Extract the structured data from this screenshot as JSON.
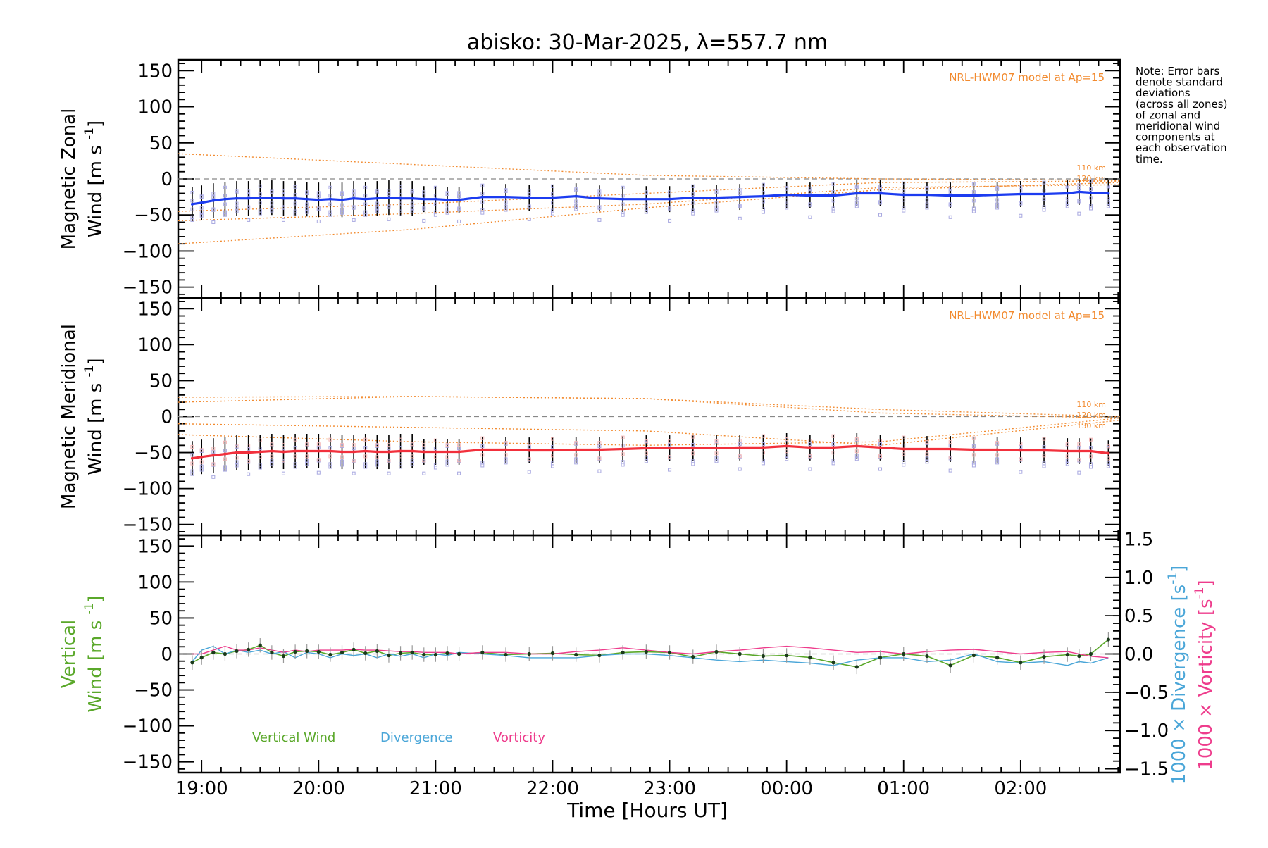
{
  "title": "abisko: 30-Mar-2025, λ=557.7 nm",
  "note_lines": [
    "Note: Error bars",
    "denote standard",
    "deviations",
    "(across all zones)",
    "of zonal and",
    "meridional wind",
    "components at",
    "each observation",
    "time."
  ],
  "colors": {
    "zonal": "#1c3cf0",
    "meridional": "#f2303c",
    "vertical": "#5aa82a",
    "divergence": "#4aa6d8",
    "vorticity": "#ee3c8c",
    "model": "#f28a2e",
    "zone_zonal": "#b4b4ec",
    "zone_merid": "#f4b8b8"
  },
  "chart_data": [
    {
      "type": "line",
      "panel": "zonal",
      "ylabel_line1": "Magnetic Zonal",
      "ylabel_line2": "Wind",
      "ylabel_units": "[m s",
      "ylabel_sup": "-1",
      "ylabel_close": "]",
      "ylim": [
        -165,
        165
      ],
      "yticks": [
        150,
        100,
        50,
        0,
        -50,
        -100,
        -150
      ],
      "model_note": "NRL-HWM07 model at Ap=15",
      "model_labels": [
        "110 km",
        "120 km"
      ],
      "x": [
        18.92,
        19.0,
        19.1,
        19.2,
        19.3,
        19.4,
        19.5,
        19.6,
        19.7,
        19.8,
        19.9,
        20.0,
        20.1,
        20.2,
        20.3,
        20.4,
        20.5,
        20.6,
        20.7,
        20.8,
        20.9,
        21.0,
        21.1,
        21.2,
        21.4,
        21.6,
        21.8,
        22.0,
        22.2,
        22.4,
        22.6,
        22.8,
        23.0,
        23.2,
        23.4,
        23.6,
        23.8,
        24.0,
        24.2,
        24.4,
        24.6,
        24.8,
        25.0,
        25.2,
        25.4,
        25.6,
        25.8,
        26.0,
        26.2,
        26.4,
        26.5,
        26.6,
        26.75
      ],
      "values": [
        -35,
        -33,
        -30,
        -28,
        -27,
        -27,
        -26,
        -26,
        -27,
        -27,
        -28,
        -29,
        -28,
        -29,
        -27,
        -28,
        -27,
        -26,
        -27,
        -27,
        -28,
        -28,
        -29,
        -29,
        -25,
        -25,
        -26,
        -26,
        -24,
        -27,
        -28,
        -28,
        -28,
        -26,
        -26,
        -25,
        -24,
        -22,
        -23,
        -23,
        -20,
        -20,
        -22,
        -22,
        -23,
        -23,
        -22,
        -21,
        -21,
        -20,
        -18,
        -19,
        -20
      ]
    },
    {
      "type": "line",
      "panel": "meridional",
      "ylabel_line1": "Magnetic Meridional",
      "ylabel_line2": "Wind",
      "ylabel_units": "[m s",
      "ylabel_sup": "-1",
      "ylabel_close": "]",
      "ylim": [
        -165,
        165
      ],
      "yticks": [
        150,
        100,
        50,
        0,
        -50,
        -100,
        -150
      ],
      "model_note": "NRL-HWM07 model at Ap=15",
      "model_labels": [
        "110 km",
        "120 km",
        "130 km"
      ],
      "x": [
        18.92,
        19.0,
        19.1,
        19.2,
        19.3,
        19.4,
        19.5,
        19.6,
        19.7,
        19.8,
        19.9,
        20.0,
        20.1,
        20.2,
        20.3,
        20.4,
        20.5,
        20.6,
        20.7,
        20.8,
        20.9,
        21.0,
        21.1,
        21.2,
        21.4,
        21.6,
        21.8,
        22.0,
        22.2,
        22.4,
        22.6,
        22.8,
        23.0,
        23.2,
        23.4,
        23.6,
        23.8,
        24.0,
        24.2,
        24.4,
        24.6,
        24.8,
        25.0,
        25.2,
        25.4,
        25.6,
        25.8,
        26.0,
        26.2,
        26.4,
        26.5,
        26.6,
        26.75
      ],
      "values": [
        -58,
        -56,
        -54,
        -52,
        -50,
        -50,
        -49,
        -48,
        -49,
        -48,
        -48,
        -48,
        -48,
        -49,
        -49,
        -48,
        -49,
        -49,
        -48,
        -48,
        -49,
        -49,
        -49,
        -49,
        -46,
        -46,
        -47,
        -47,
        -46,
        -46,
        -45,
        -44,
        -44,
        -44,
        -44,
        -43,
        -43,
        -41,
        -43,
        -43,
        -41,
        -43,
        -45,
        -45,
        -45,
        -46,
        -46,
        -47,
        -47,
        -48,
        -48,
        -48,
        -51
      ]
    },
    {
      "type": "line",
      "panel": "vertical",
      "ylabel_line1": "Vertical",
      "ylabel_line2": "Wind",
      "ylabel_units": "[m s",
      "ylabel_sup": "-1",
      "ylabel_close": "]",
      "ylim": [
        -165,
        165
      ],
      "yticks": [
        150,
        100,
        50,
        0,
        -50,
        -100,
        -150
      ],
      "right_ylim": [
        -1.55,
        1.55
      ],
      "right_yticks": [
        "1.5",
        "1.0",
        "0.5",
        "0.0",
        "-0.5",
        "-1.0",
        "-1.5"
      ],
      "right_label_div": "1000 × Divergence [s",
      "right_label_vort": "1000 × Vorticity [s",
      "right_label_sup": "-1",
      "right_label_close": "]",
      "x": [
        18.92,
        19.0,
        19.1,
        19.2,
        19.3,
        19.4,
        19.5,
        19.6,
        19.7,
        19.8,
        19.9,
        20.0,
        20.1,
        20.2,
        20.3,
        20.4,
        20.5,
        20.6,
        20.7,
        20.8,
        20.9,
        21.0,
        21.1,
        21.2,
        21.4,
        21.6,
        21.8,
        22.0,
        22.2,
        22.4,
        22.6,
        22.8,
        23.0,
        23.2,
        23.4,
        23.6,
        23.8,
        24.0,
        24.2,
        24.4,
        24.6,
        24.8,
        25.0,
        25.2,
        25.4,
        25.6,
        25.8,
        26.0,
        26.2,
        26.4,
        26.5,
        26.6,
        26.75
      ],
      "series": [
        {
          "name": "Vertical Wind",
          "axis": "left",
          "values": [
            -12,
            -5,
            2,
            0,
            4,
            6,
            12,
            2,
            -3,
            3,
            4,
            3,
            -1,
            2,
            6,
            1,
            4,
            -2,
            1,
            2,
            -1,
            -1,
            1,
            0,
            2,
            -1,
            0,
            1,
            -1,
            -2,
            2,
            3,
            2,
            -4,
            3,
            0,
            -3,
            -2,
            -5,
            -12,
            -18,
            -5,
            0,
            -3,
            -16,
            -2,
            -5,
            -12,
            -4,
            -1,
            -3,
            0,
            20
          ]
        },
        {
          "name": "Divergence",
          "axis": "right",
          "values": [
            -0.1,
            0.05,
            0.1,
            0.0,
            0.05,
            0.02,
            0.05,
            0.0,
            0.03,
            -0.05,
            0.02,
            0.0,
            -0.05,
            0.0,
            -0.02,
            0.0,
            -0.05,
            0.0,
            -0.03,
            0.0,
            -0.05,
            0.0,
            -0.02,
            0.02,
            0.0,
            -0.02,
            -0.05,
            -0.05,
            -0.05,
            -0.02,
            0.0,
            0.0,
            -0.02,
            -0.05,
            -0.08,
            -0.1,
            -0.08,
            -0.1,
            -0.12,
            -0.15,
            -0.08,
            -0.05,
            -0.05,
            -0.1,
            -0.08,
            0.0,
            -0.1,
            -0.12,
            -0.1,
            -0.15,
            -0.1,
            -0.12,
            -0.05
          ]
        },
        {
          "name": "Vorticity",
          "axis": "right",
          "values": [
            0.0,
            0.0,
            0.05,
            0.1,
            0.05,
            0.05,
            0.08,
            0.05,
            0.02,
            0.05,
            0.03,
            0.05,
            0.05,
            0.05,
            0.06,
            0.05,
            0.05,
            0.04,
            0.03,
            0.03,
            0.02,
            0.02,
            0.02,
            0.0,
            0.02,
            0.02,
            0.0,
            0.0,
            0.03,
            0.05,
            0.08,
            0.05,
            0.02,
            0.0,
            0.03,
            0.05,
            0.08,
            0.1,
            0.08,
            0.05,
            0.02,
            0.03,
            0.0,
            0.03,
            0.05,
            0.06,
            0.03,
            0.0,
            0.02,
            0.03,
            0.0,
            -0.03,
            -0.05
          ]
        }
      ],
      "legend": [
        "Vertical Wind",
        "Divergence",
        "Vorticity"
      ]
    }
  ],
  "xaxis": {
    "label": "Time [Hours UT]",
    "xlim": [
      18.8,
      26.85
    ],
    "ticks": [
      19,
      20,
      21,
      22,
      23,
      24,
      25,
      26
    ],
    "tick_labels": [
      "19:00",
      "20:00",
      "21:00",
      "22:00",
      "23:00",
      "00:00",
      "01:00",
      "02:00"
    ]
  }
}
